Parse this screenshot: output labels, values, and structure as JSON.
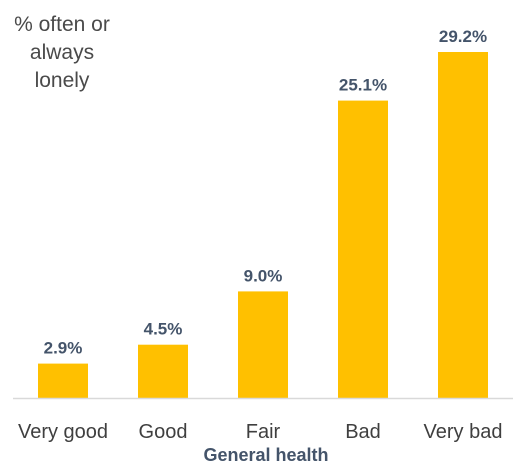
{
  "chart_data": {
    "type": "bar",
    "ylabel_lines": [
      "% often or",
      "always",
      "lonely"
    ],
    "xlabel": "General health",
    "categories": [
      "Very good",
      "Good",
      "Fair",
      "Bad",
      "Very bad"
    ],
    "values": [
      2.9,
      4.5,
      9.0,
      25.1,
      29.2
    ],
    "data_labels": [
      "2.9%",
      "4.5%",
      "9.0%",
      "25.1%",
      "29.2%"
    ],
    "ylim": [
      0,
      30
    ],
    "grid": false,
    "legend": "none",
    "bar_color": "#ffc000",
    "axis_color": "#d9d9d9"
  }
}
